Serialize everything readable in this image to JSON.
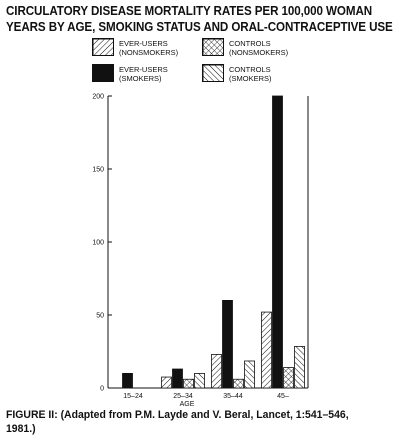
{
  "title_line1": "CIRCULATORY DISEASE MORTALITY RATES PER 100,000 WOMAN",
  "title_line2": "YEARS BY AGE, SMOKING STATUS AND ORAL-CONTRACEPTIVE USE",
  "legend": {
    "ever_nonsmokers": {
      "line1": "EVER-USERS",
      "line2": "(NONSMOKERS)"
    },
    "controls_nonsmokers": {
      "line1": "CONTROLS",
      "line2": "(NONSMOKERS)"
    },
    "ever_smokers": {
      "line1": "EVER-USERS",
      "line2": "(SMOKERS)"
    },
    "controls_smokers": {
      "line1": "CONTROLS",
      "line2": "(SMOKERS)"
    }
  },
  "caption_line1": "FIGURE II: (Adapted from P.M. Layde and V. Beral, Lancet, 1:541–546,",
  "caption_line2": "1981.)",
  "chart_data": {
    "type": "bar",
    "title": "CIRCULATORY DISEASE MORTALITY RATES PER 100,000 WOMAN YEARS BY AGE, SMOKING STATUS AND ORAL-CONTRACEPTIVE USE",
    "xlabel": "AGE",
    "ylabel": "",
    "categories": [
      "15–24",
      "25–34",
      "35–44",
      "45–"
    ],
    "yticks": [
      0,
      50,
      100,
      150,
      200
    ],
    "ylim": [
      0,
      200
    ],
    "grid": false,
    "legend_position": "top",
    "series": [
      {
        "name": "EVER-USERS (NONSMOKERS)",
        "pattern": "diagonal",
        "values": [
          null,
          7.5,
          23,
          52
        ]
      },
      {
        "name": "EVER-USERS (SMOKERS)",
        "pattern": "solid",
        "values": [
          10,
          13,
          60,
          200
        ]
      },
      {
        "name": "CONTROLS (NONSMOKERS)",
        "pattern": "crosshatch",
        "values": [
          null,
          6,
          6,
          14
        ]
      },
      {
        "name": "CONTROLS (SMOKERS)",
        "pattern": "backdiagonal",
        "values": [
          null,
          10,
          18.5,
          28.5
        ]
      }
    ]
  }
}
